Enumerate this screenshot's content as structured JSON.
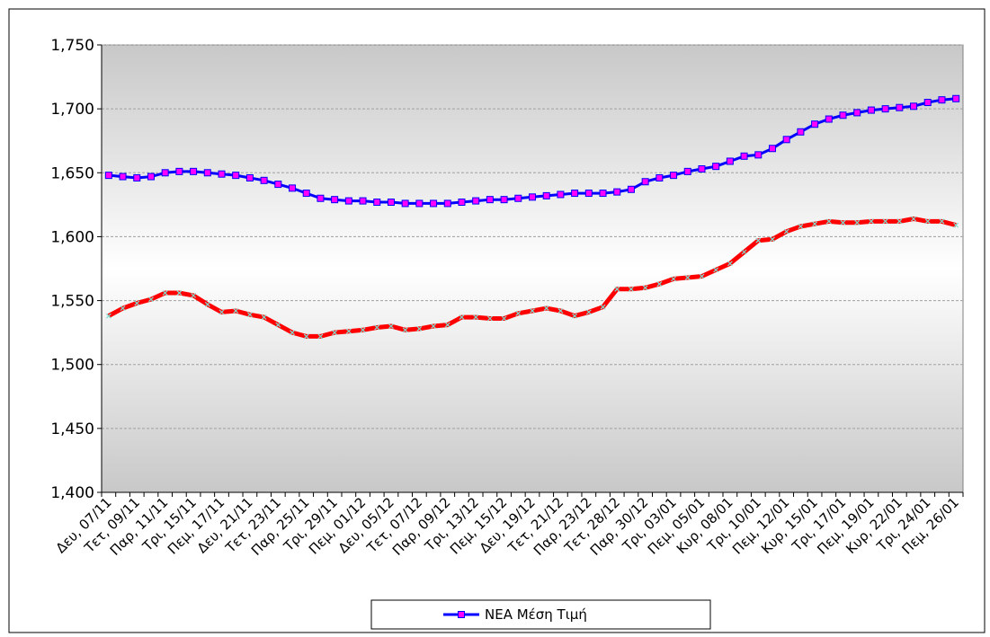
{
  "chart_data": {
    "type": "line",
    "categories": [
      "Δευ, 07/11",
      null,
      "Τετ, 09/11",
      null,
      "Παρ, 11/11",
      null,
      "Τρι, 15/11",
      null,
      "Πεμ, 17/11",
      null,
      "Δευ, 21/11",
      null,
      "Τετ, 23/11",
      null,
      "Παρ, 25/11",
      null,
      "Τρι, 29/11",
      null,
      "Πεμ, 01/12",
      null,
      "Δευ, 05/12",
      null,
      "Τετ, 07/12",
      null,
      "Παρ, 09/12",
      null,
      "Τρι, 13/12",
      null,
      "Πεμ, 15/12",
      null,
      "Δευ, 19/12",
      null,
      "Τετ, 21/12",
      null,
      "Παρ, 23/12",
      null,
      "Τετ, 28/12",
      null,
      "Παρ, 30/12",
      null,
      "Τρι, 03/01",
      null,
      "Πεμ, 05/01",
      null,
      "Κυρ, 08/01",
      null,
      "Τρι, 10/01",
      null,
      "Πεμ, 12/01",
      null,
      "Κυρ, 15/01",
      null,
      "Τρι, 17/01",
      null,
      "Πεμ, 19/01",
      null,
      "Κυρ, 22/01",
      null,
      "Τρι, 24/01",
      null,
      "Πεμ, 26/01"
    ],
    "series": [
      {
        "name": "ΝΕΑ Μέση Τιμή",
        "color": "#0000ff",
        "marker_color": "#ff00ff",
        "values": [
          1648,
          1647,
          1646,
          1647,
          1650,
          1651,
          1651,
          1650,
          1649,
          1648,
          1646,
          1644,
          1641,
          1638,
          1634,
          1630,
          1629,
          1628,
          1628,
          1627,
          1627,
          1626,
          1626,
          1626,
          1626,
          1627,
          1628,
          1629,
          1629,
          1630,
          1631,
          1632,
          1633,
          1634,
          1634,
          1634,
          1635,
          1637,
          1643,
          1646,
          1648,
          1651,
          1653,
          1655,
          1659,
          1663,
          1664,
          1669,
          1676,
          1682,
          1688,
          1692,
          1695,
          1697,
          1699,
          1700,
          1701,
          1702,
          1705,
          1707,
          1708
        ]
      },
      {
        "color": "#ff0000",
        "marker_color": "#7fdcd0",
        "values": [
          1538,
          1544,
          1548,
          1551,
          1556,
          1556,
          1554,
          1547,
          1541,
          1542,
          1539,
          1537,
          1531,
          1525,
          1522,
          1522,
          1525,
          1526,
          1527,
          1529,
          1530,
          1527,
          1528,
          1530,
          1531,
          1537,
          1537,
          1536,
          1536,
          1540,
          1542,
          1544,
          1542,
          1538,
          1541,
          1545,
          1559,
          1559,
          1560,
          1563,
          1567,
          1568,
          1569,
          1574,
          1579,
          1588,
          1597,
          1598,
          1604,
          1608,
          1610,
          1612,
          1611,
          1611,
          1612,
          1612,
          1612,
          1614,
          1612,
          1612,
          1609
        ]
      }
    ],
    "ylim": [
      1400,
      1750
    ],
    "yticks": [
      {
        "value": 1400,
        "label": "1,400"
      },
      {
        "value": 1450,
        "label": "1,450"
      },
      {
        "value": 1500,
        "label": "1,500"
      },
      {
        "value": 1550,
        "label": "1,550"
      },
      {
        "value": 1600,
        "label": "1,600"
      },
      {
        "value": 1650,
        "label": "1,650"
      },
      {
        "value": 1700,
        "label": "1,700"
      },
      {
        "value": 1750,
        "label": "1,750"
      }
    ],
    "grid": true,
    "legend": "bottom"
  }
}
